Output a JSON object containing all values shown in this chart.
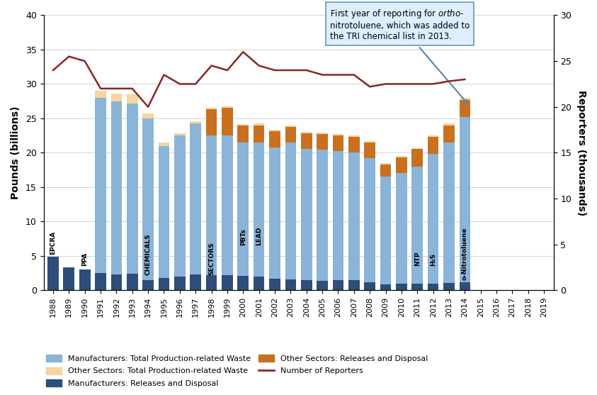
{
  "years": [
    1988,
    1989,
    1990,
    1991,
    1992,
    1993,
    1994,
    1995,
    1996,
    1997,
    1998,
    1999,
    2000,
    2001,
    2002,
    2003,
    2004,
    2005,
    2006,
    2007,
    2008,
    2009,
    2010,
    2011,
    2012,
    2013,
    2014,
    2015,
    2016,
    2017,
    2018,
    2019
  ],
  "mfr_releases": [
    4.9,
    3.3,
    3.0,
    2.5,
    2.3,
    2.4,
    1.5,
    1.8,
    2.0,
    2.3,
    2.2,
    2.2,
    2.1,
    2.0,
    1.7,
    1.6,
    1.5,
    1.4,
    1.5,
    1.5,
    1.2,
    0.8,
    1.0,
    1.0,
    1.0,
    1.1,
    1.2,
    0,
    0,
    0,
    0,
    0
  ],
  "mfr_total_above": [
    0,
    0,
    0,
    25.5,
    25.2,
    24.8,
    23.5,
    19.2,
    20.5,
    22.0,
    20.3,
    20.3,
    19.4,
    19.5,
    19.1,
    19.9,
    19.0,
    19.0,
    18.7,
    18.5,
    18.0,
    15.7,
    16.0,
    17.0,
    18.8,
    20.4,
    24.0,
    0,
    0,
    0,
    0,
    0
  ],
  "other_releases": [
    0,
    0,
    0,
    0,
    0,
    0,
    0,
    0,
    0,
    0,
    3.8,
    4.0,
    2.5,
    2.5,
    2.3,
    2.3,
    2.3,
    2.3,
    2.3,
    2.3,
    2.3,
    1.8,
    2.3,
    2.5,
    2.5,
    2.5,
    2.5,
    0,
    0,
    0,
    0,
    0
  ],
  "other_total_above": [
    0,
    0,
    0,
    1.0,
    1.1,
    1.3,
    0.7,
    0.5,
    0.3,
    0.3,
    0.2,
    0.2,
    0.2,
    0.3,
    0.2,
    0.2,
    0.2,
    0.2,
    0.2,
    0.2,
    0.2,
    0.2,
    0.2,
    0.2,
    0.2,
    0.3,
    0.3,
    0,
    0,
    0,
    0,
    0
  ],
  "reporters": [
    24.0,
    25.5,
    25.0,
    22.0,
    22.0,
    22.0,
    20.0,
    23.5,
    22.5,
    22.5,
    24.5,
    24.0,
    26.0,
    24.5,
    24.0,
    24.0,
    24.0,
    23.5,
    23.5,
    23.5,
    22.2,
    22.5,
    22.5,
    22.5,
    22.5,
    22.8,
    23.0,
    null,
    null,
    null,
    null,
    null
  ],
  "bar_color_mfr_total": "#8ab4d8",
  "bar_color_mfr_releases": "#2e4d7a",
  "bar_color_other_total": "#f5d5a0",
  "bar_color_other_releases": "#c87020",
  "line_color_reporters": "#8b2525",
  "annotation_box_facecolor": "#ddeeff",
  "annotation_box_edgecolor": "#6699bb",
  "arrow_color": "#5588aa",
  "ylabel_left": "Pounds (billions)",
  "ylabel_right": "Reporters (thousands)"
}
